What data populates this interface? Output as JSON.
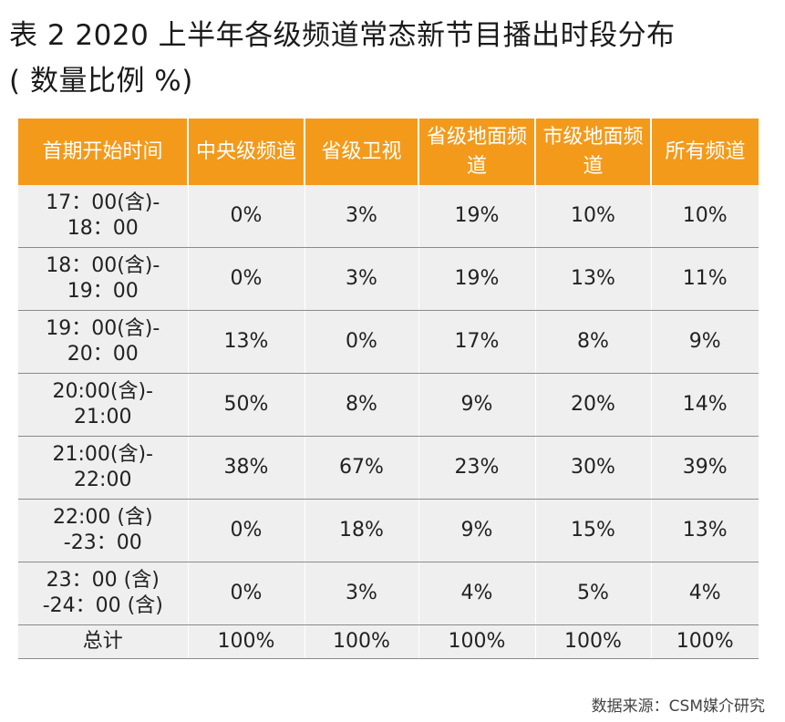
{
  "title": {
    "line1": "表 2   2020 上半年各级频道常态新节目播出时段分布",
    "line2": "( 数量比例 %)"
  },
  "table": {
    "headers": [
      "首期开始时间",
      "中央级频道",
      "省级卫视",
      "省级地面频道",
      "市级地面频道",
      "所有频道"
    ],
    "rows": [
      {
        "time": [
          "17：00(含)-",
          "18：00"
        ],
        "values": [
          "0%",
          "3%",
          "19%",
          "10%",
          "10%"
        ]
      },
      {
        "time": [
          "18：00(含)-",
          "19：00"
        ],
        "values": [
          "0%",
          "3%",
          "19%",
          "13%",
          "11%"
        ]
      },
      {
        "time": [
          "19：00(含)-",
          "20：00"
        ],
        "values": [
          "13%",
          "0%",
          "17%",
          "8%",
          "9%"
        ]
      },
      {
        "time": [
          "20:00(含)-",
          "21:00"
        ],
        "values": [
          "50%",
          "8%",
          "9%",
          "20%",
          "14%"
        ]
      },
      {
        "time": [
          "21:00(含)-",
          "22:00"
        ],
        "values": [
          "38%",
          "67%",
          "23%",
          "30%",
          "39%"
        ]
      },
      {
        "time": [
          "22:00 (含)",
          "-23：00"
        ],
        "values": [
          "0%",
          "18%",
          "9%",
          "15%",
          "13%"
        ]
      },
      {
        "time": [
          "23：00 (含)",
          "-24：00 (含)"
        ],
        "values": [
          "0%",
          "3%",
          "4%",
          "5%",
          "4%"
        ]
      }
    ],
    "total": {
      "label": "总计",
      "values": [
        "100%",
        "100%",
        "100%",
        "100%",
        "100%"
      ]
    }
  },
  "source": "数据来源：CSM媒介研究"
}
